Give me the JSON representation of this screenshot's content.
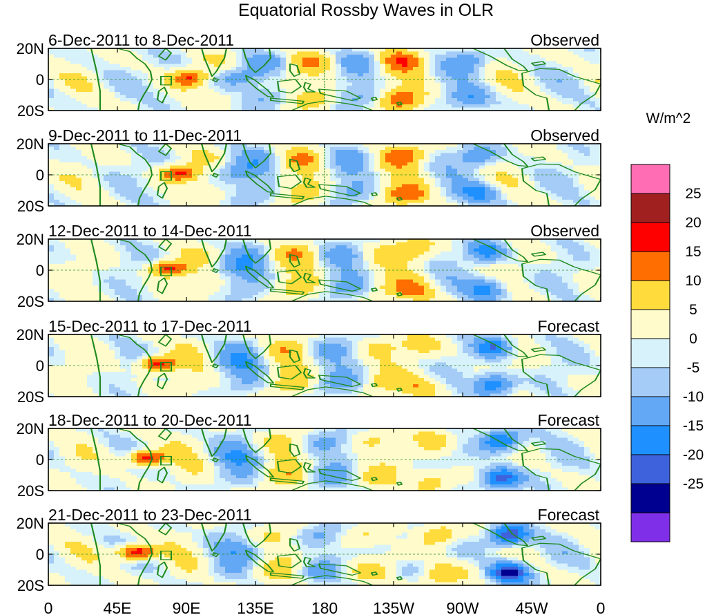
{
  "title": "Equatorial Rossby Waves in OLR",
  "colorbar": {
    "units": "W/m^2",
    "colors": [
      "#7f2fe8",
      "#000090",
      "#3e62db",
      "#1e90ff",
      "#63a8f5",
      "#a5ccf7",
      "#d8f2fb",
      "#fffbcb",
      "#ffdc3c",
      "#ff6e00",
      "#ff0000",
      "#a02020",
      "#ff6eb4"
    ],
    "labels": [
      "25",
      "20",
      "15",
      "10",
      "5",
      "0",
      "-5",
      "-10",
      "-15",
      "-20",
      "-25"
    ]
  },
  "lat_labels": [
    "20N",
    "0",
    "20S"
  ],
  "lon_labels": [
    "0",
    "45E",
    "90E",
    "135E",
    "180",
    "135W",
    "90W",
    "45W",
    "0"
  ],
  "panels": [
    {
      "date_range": "6-Dec-2011 to 8-Dec-2011",
      "status": "Observed"
    },
    {
      "date_range": "9-Dec-2011 to 11-Dec-2011",
      "status": "Observed"
    },
    {
      "date_range": "12-Dec-2011 to 14-Dec-2011",
      "status": "Observed"
    },
    {
      "date_range": "15-Dec-2011 to 17-Dec-2011",
      "status": "Forecast"
    },
    {
      "date_range": "18-Dec-2011 to 20-Dec-2011",
      "status": "Forecast"
    },
    {
      "date_range": "21-Dec-2011 to 23-Dec-2011",
      "status": "Forecast"
    }
  ]
}
